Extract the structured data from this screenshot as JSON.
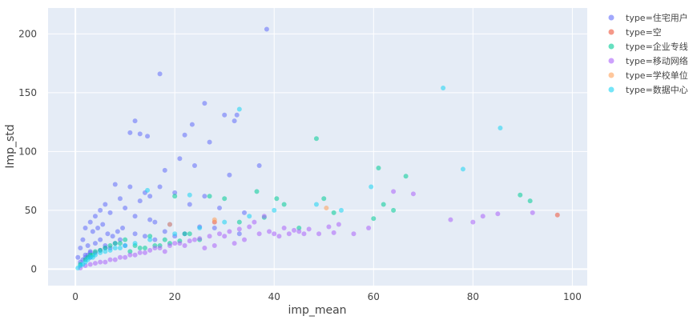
{
  "chart_data": {
    "type": "scatter",
    "title": "",
    "xlabel": "imp_mean",
    "ylabel": "Imp_std",
    "xlim": [
      -5.5,
      103
    ],
    "ylim": [
      -14,
      222
    ],
    "xticks": [
      0,
      20,
      40,
      60,
      80,
      100
    ],
    "yticks": [
      0,
      50,
      100,
      150,
      200
    ],
    "grid": true,
    "legend_position": "right",
    "series": [
      {
        "name": "type=住宅用户",
        "color": "#636efa",
        "x": [
          38.5,
          17,
          26,
          32.5,
          12,
          23.5,
          11,
          22,
          30,
          13,
          14.5,
          27,
          37,
          32,
          21,
          24,
          18,
          31,
          8,
          11,
          14,
          9,
          6,
          5,
          4,
          3,
          7,
          10,
          12,
          15,
          16,
          19,
          25,
          28,
          33,
          2,
          1.5,
          1,
          0.5,
          3.5,
          4.5,
          5.5,
          6.5,
          7.5,
          8.5,
          9.5,
          2.5,
          3,
          4,
          5,
          6,
          7,
          8,
          9,
          10,
          12,
          14,
          16,
          18,
          20,
          22,
          2,
          3,
          4,
          5,
          6,
          1,
          1.5,
          2,
          2.5,
          3,
          13,
          15,
          17,
          20,
          23,
          26,
          29,
          34
        ],
        "y": [
          204,
          166,
          141,
          131,
          126,
          123,
          116,
          114,
          131,
          115,
          113,
          108,
          88,
          126,
          94,
          88,
          84,
          80,
          72,
          70,
          65,
          60,
          55,
          50,
          45,
          40,
          48,
          52,
          45,
          42,
          40,
          38,
          36,
          35,
          30,
          35,
          25,
          18,
          10,
          32,
          35,
          38,
          30,
          28,
          32,
          35,
          20,
          15,
          22,
          25,
          20,
          18,
          22,
          25,
          20,
          30,
          28,
          25,
          32,
          28,
          30,
          12,
          10,
          14,
          16,
          18,
          6,
          8,
          10,
          12,
          14,
          58,
          62,
          70,
          65,
          55,
          62,
          52,
          48
        ]
      },
      {
        "name": "type=空",
        "color": "#EF553B",
        "x": [
          97,
          28
        ],
        "y": [
          46,
          40
        ]
      },
      {
        "name": "type=企业专线",
        "color": "#00cc96",
        "x": [
          48.5,
          61,
          66.5,
          36.5,
          40.5,
          38,
          45,
          60,
          62,
          64,
          20,
          27,
          30,
          33,
          25,
          22,
          10,
          12,
          8,
          6,
          4,
          3,
          2,
          5,
          7,
          9,
          15,
          18,
          14,
          16,
          1,
          2.5,
          3.5,
          11,
          13,
          17,
          19,
          21,
          23,
          91.5,
          89.5,
          42,
          50,
          52
        ],
        "y": [
          111,
          86,
          79,
          66,
          60,
          44,
          35,
          43,
          55,
          50,
          62,
          62,
          60,
          40,
          25,
          30,
          25,
          20,
          22,
          18,
          15,
          12,
          8,
          16,
          20,
          22,
          28,
          25,
          18,
          20,
          4,
          10,
          12,
          15,
          18,
          20,
          22,
          24,
          30,
          58,
          63,
          55,
          60,
          48
        ]
      },
      {
        "name": "type=移动网络",
        "color": "#ab63fa",
        "x": [
          92,
          85,
          80,
          75.5,
          68,
          64,
          59,
          56,
          52,
          49,
          46,
          44,
          42,
          40,
          38,
          36,
          34,
          32,
          30,
          28,
          26,
          24,
          22,
          20,
          18,
          16,
          14,
          12,
          10,
          8,
          6,
          4,
          3,
          2,
          1,
          5,
          7,
          9,
          11,
          13,
          15,
          17,
          19,
          21,
          23,
          25,
          27,
          29,
          31,
          33,
          35,
          37,
          39,
          41,
          43,
          45,
          47,
          82,
          51,
          53
        ],
        "y": [
          48,
          47,
          40,
          42,
          64,
          66,
          35,
          30,
          31,
          30,
          30,
          33,
          35,
          30,
          45,
          40,
          25,
          22,
          28,
          20,
          18,
          25,
          20,
          22,
          15,
          18,
          14,
          12,
          10,
          8,
          6,
          5,
          4,
          3,
          1,
          6,
          8,
          10,
          12,
          14,
          16,
          18,
          20,
          22,
          24,
          26,
          28,
          30,
          32,
          34,
          36,
          30,
          32,
          28,
          30,
          32,
          34,
          45,
          36,
          38
        ]
      },
      {
        "name": "type=学校单位",
        "color": "#FFA15A",
        "x": [
          50.5,
          28,
          19
        ],
        "y": [
          52,
          42,
          38
        ]
      },
      {
        "name": "type=数据中心",
        "color": "#19d3f3",
        "x": [
          74,
          85.5,
          78,
          59.5,
          48.5,
          53.5,
          33,
          14.5,
          23,
          3,
          2,
          1,
          0.5,
          1.5,
          4,
          6,
          8,
          10,
          12,
          5,
          7,
          9,
          2.5,
          3.5,
          15,
          20,
          25,
          30,
          35,
          40
        ],
        "y": [
          154,
          120,
          85,
          70,
          55,
          50,
          136,
          67,
          63,
          10,
          6,
          3,
          1,
          4,
          12,
          15,
          18,
          20,
          22,
          14,
          16,
          18,
          8,
          10,
          25,
          30,
          35,
          40,
          45,
          50
        ]
      }
    ]
  }
}
